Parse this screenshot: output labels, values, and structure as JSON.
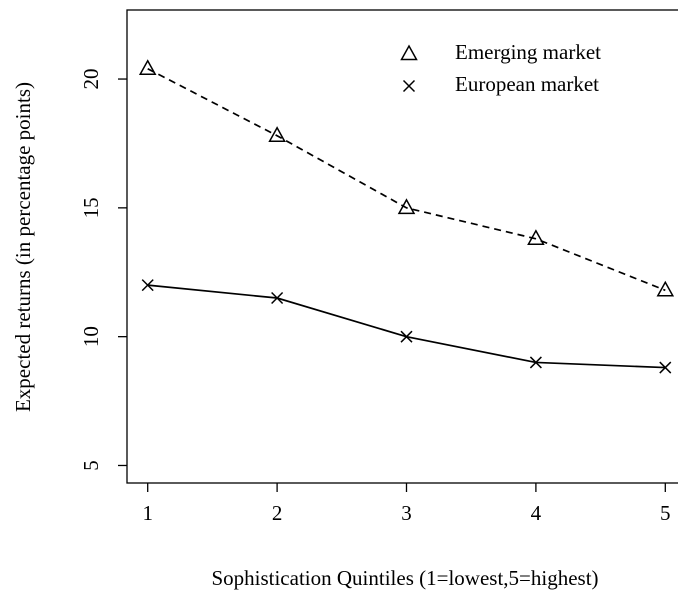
{
  "chart_data": {
    "type": "line",
    "xlabel": "Sophistication Quintiles (1=lowest,5=highest)",
    "ylabel": "Expected returns (in percentage points)",
    "x": [
      1,
      2,
      3,
      4,
      5
    ],
    "series": [
      {
        "name": "Emerging market",
        "color": "#000000",
        "marker": "triangle",
        "dash": true,
        "values": [
          20.4,
          17.8,
          15.0,
          13.8,
          11.8
        ]
      },
      {
        "name": "European market",
        "color": "#000000",
        "marker": "cross",
        "dash": false,
        "values": [
          12.0,
          11.5,
          10.0,
          9.0,
          8.8
        ]
      }
    ],
    "xlim": [
      0.84,
      5.16
    ],
    "xticks": [
      1,
      2,
      3,
      4,
      5
    ],
    "ylim": [
      4.32,
      22.68
    ],
    "yticks": [
      5,
      10,
      15,
      20
    ],
    "legend": "top-right"
  }
}
